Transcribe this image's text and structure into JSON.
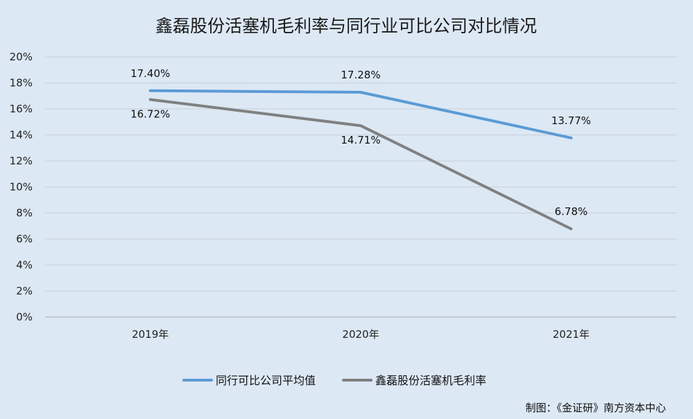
{
  "chart_data": {
    "type": "line",
    "title": "鑫磊股份活塞机毛利率与同行业可比公司对比情况",
    "categories": [
      "2019年",
      "2020年",
      "2021年"
    ],
    "y_unit": "%",
    "ylim": [
      0,
      20
    ],
    "yticks": [
      0,
      2,
      4,
      6,
      8,
      10,
      12,
      14,
      16,
      18,
      20
    ],
    "ytick_labels": [
      "0%",
      "2%",
      "4%",
      "6%",
      "8%",
      "10%",
      "12%",
      "14%",
      "16%",
      "18%",
      "20%"
    ],
    "grid": true,
    "legend_position": "bottom",
    "series": [
      {
        "name": "同行可比公司平均值",
        "values": [
          17.4,
          17.28,
          13.77
        ],
        "labels": [
          "17.40%",
          "17.28%",
          "13.77%"
        ],
        "color": "#5b9bd5"
      },
      {
        "name": "鑫磊股份活塞机毛利率",
        "values": [
          16.72,
          14.71,
          6.78
        ],
        "labels": [
          "16.72%",
          "14.71%",
          "6.78%"
        ],
        "color": "#808080"
      }
    ]
  },
  "credit": "制图：《金证研》南方资本中心"
}
